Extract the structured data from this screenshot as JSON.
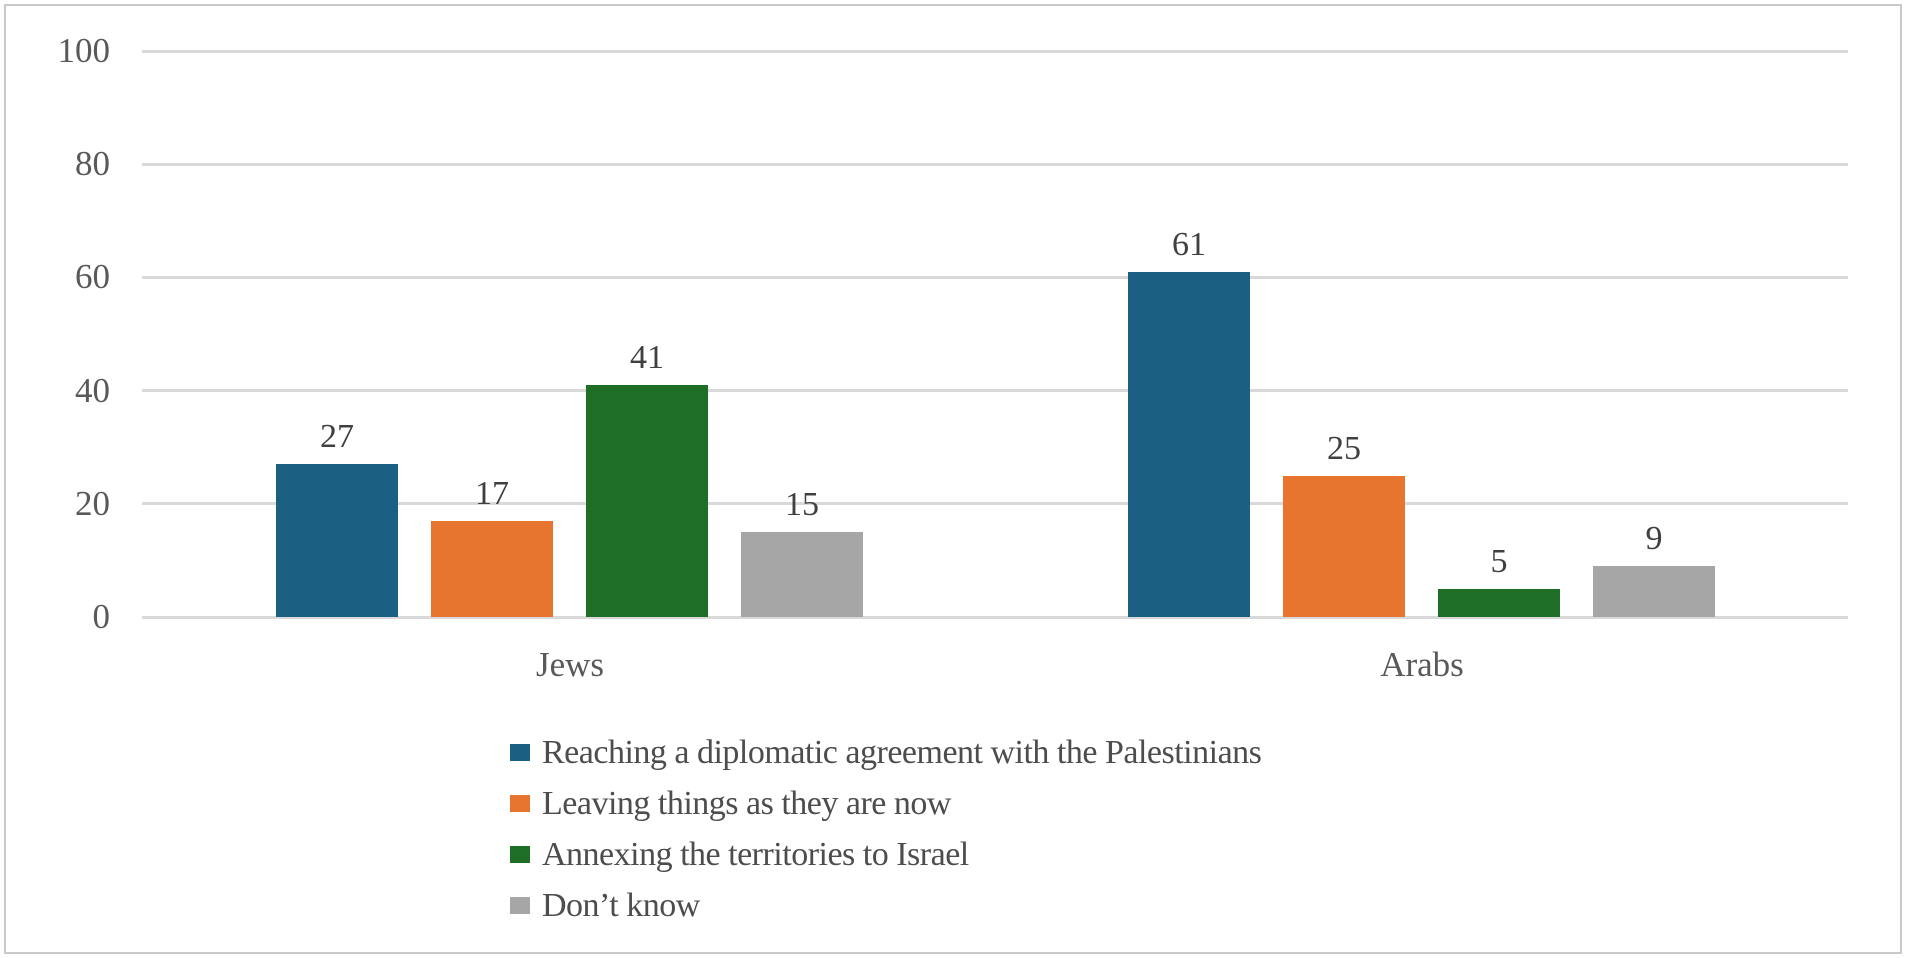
{
  "chart_data": {
    "type": "bar",
    "title": "",
    "categories": [
      "Jews",
      "Arabs"
    ],
    "series": [
      {
        "name": "Reaching a diplomatic agreement with the Palestinians",
        "color": "#1B5F82",
        "values": [
          27,
          61
        ]
      },
      {
        "name": "Leaving things as they are now",
        "color": "#E8752F",
        "values": [
          17,
          25
        ]
      },
      {
        "name": "Annexing the territories to Israel",
        "color": "#1E6E26",
        "values": [
          41,
          5
        ]
      },
      {
        "name": "Don’t know",
        "color": "#A6A6A6",
        "values": [
          15,
          9
        ]
      }
    ],
    "ylim": [
      0,
      100
    ],
    "yticks": [
      0,
      20,
      40,
      60,
      80,
      100
    ],
    "grid": "horizontal",
    "data_labels": true,
    "legend_position": "bottom-left",
    "colors": {
      "gridline": "#D9D9D9",
      "frame_border": "#C9C9C9",
      "tick_text": "#595959",
      "data_label_text": "#404040",
      "legend_text": "#4D4D4D",
      "background": "#FFFFFF"
    }
  }
}
